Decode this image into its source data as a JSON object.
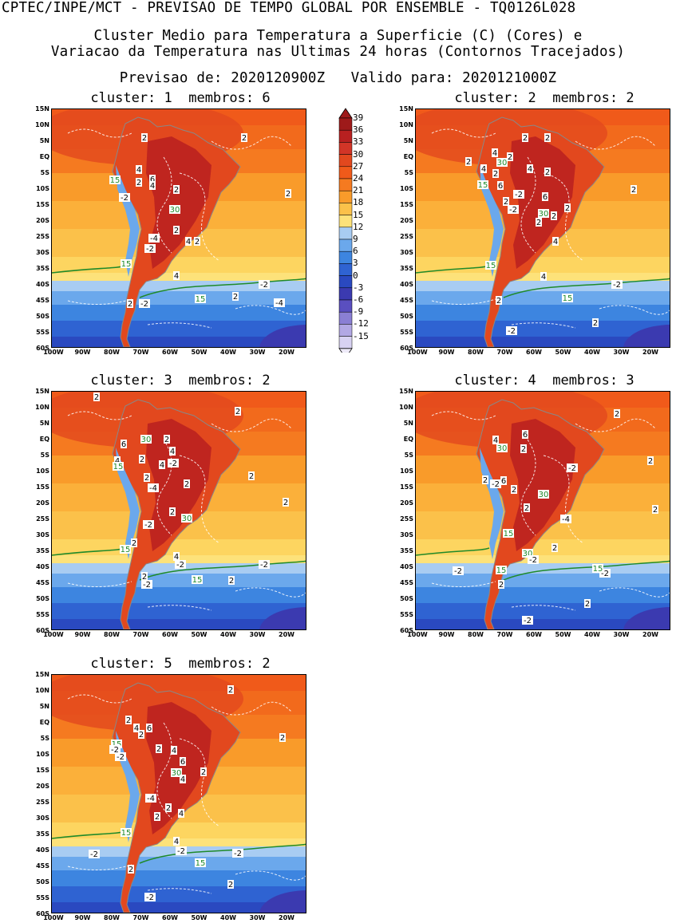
{
  "header": {
    "line1": "CPTEC/INPE/MCT - PREVISAO DE TEMPO GLOBAL POR ENSEMBLE - TQ0126L028",
    "line2": "Cluster Medio para Temperatura a Superficie (C) (Cores) e",
    "line3": "Variacao da Temperatura nas Ultimas 24 horas (Contornos Tracejados)",
    "line4": "Previsao de: 2020120900Z   Valido para: 2020121000Z"
  },
  "panels": [
    {
      "title": "cluster: 1  membros: 6"
    },
    {
      "title": "cluster: 2  membros: 2"
    },
    {
      "title": "cluster: 3  membros: 2"
    },
    {
      "title": "cluster: 4  membros: 3"
    },
    {
      "title": "cluster: 5  membros: 2"
    }
  ],
  "lat_labels": [
    "15N",
    "10N",
    "5N",
    "EQ",
    "5S",
    "10S",
    "15S",
    "20S",
    "25S",
    "30S",
    "35S",
    "40S",
    "45S",
    "50S",
    "55S",
    "60S"
  ],
  "lon_labels": [
    "100W",
    "90W",
    "80W",
    "70W",
    "60W",
    "50W",
    "40W",
    "30W",
    "20W"
  ],
  "colorbar": {
    "labels": [
      "39",
      "36",
      "33",
      "30",
      "27",
      "24",
      "21",
      "18",
      "15",
      "12",
      "9",
      "6",
      "3",
      "0",
      "-3",
      "-6",
      "-9",
      "-12",
      "-15"
    ],
    "colors": [
      "#9e1a1a",
      "#b82020",
      "#d23527",
      "#e2481e",
      "#f05a1a",
      "#f57a20",
      "#f99b2a",
      "#fbc14a",
      "#fde27a",
      "#a8ccf2",
      "#6ba8ec",
      "#3d85e0",
      "#2f63d2",
      "#2a49c0",
      "#3b3ab0",
      "#5a4fc0",
      "#8a7fd4",
      "#b2a8e4",
      "#d8d2f2"
    ]
  },
  "contour_labels": {
    "p1": [
      [
        "2",
        180,
        172
      ],
      [
        "2",
        305,
        172
      ],
      [
        "15",
        143,
        225
      ],
      [
        "4",
        173,
        212
      ],
      [
        "6",
        190,
        224
      ],
      [
        "2",
        173,
        228
      ],
      [
        "4",
        190,
        232
      ],
      [
        "2",
        220,
        237
      ],
      [
        "-2",
        155,
        247
      ],
      [
        "30",
        218,
        262
      ],
      [
        "2",
        360,
        242
      ],
      [
        "2",
        220,
        288
      ],
      [
        "-4",
        192,
        298
      ],
      [
        "4",
        235,
        302
      ],
      [
        "2",
        246,
        302
      ],
      [
        "-2",
        187,
        311
      ],
      [
        "4",
        220,
        345
      ],
      [
        "15",
        157,
        330
      ],
      [
        "-2",
        330,
        356
      ],
      [
        "2",
        294,
        371
      ],
      [
        "-4",
        349,
        379
      ],
      [
        "2",
        162,
        380
      ],
      [
        "-2",
        180,
        380
      ],
      [
        "15",
        250,
        374
      ]
    ],
    "p2": [
      [
        "2",
        657,
        172
      ],
      [
        "2",
        685,
        172
      ],
      [
        "4",
        619,
        191
      ],
      [
        "2",
        638,
        196
      ],
      [
        "2",
        586,
        202
      ],
      [
        "30",
        628,
        203
      ],
      [
        "4",
        605,
        211
      ],
      [
        "2",
        620,
        217
      ],
      [
        "4",
        663,
        211
      ],
      [
        "2",
        685,
        215
      ],
      [
        "15",
        604,
        231
      ],
      [
        "6",
        626,
        232
      ],
      [
        "-2",
        649,
        243
      ],
      [
        "6",
        682,
        246
      ],
      [
        "2",
        793,
        237
      ],
      [
        "2",
        633,
        252
      ],
      [
        "-2",
        642,
        262
      ],
      [
        "30",
        680,
        267
      ],
      [
        "2",
        710,
        260
      ],
      [
        "2",
        693,
        270
      ],
      [
        "2",
        674,
        278
      ],
      [
        "4",
        695,
        302
      ],
      [
        "15",
        614,
        332
      ],
      [
        "4",
        680,
        346
      ],
      [
        "-2",
        772,
        356
      ],
      [
        "2",
        624,
        376
      ],
      [
        "15",
        710,
        373
      ],
      [
        "2",
        745,
        404
      ],
      [
        "-2",
        640,
        414
      ]
    ],
    "p3": [
      [
        "2",
        120,
        497
      ],
      [
        "2",
        297,
        515
      ],
      [
        "6",
        154,
        556
      ],
      [
        "30",
        182,
        550
      ],
      [
        "2",
        208,
        550
      ],
      [
        "4",
        215,
        565
      ],
      [
        "4",
        146,
        577
      ],
      [
        "2",
        177,
        575
      ],
      [
        "15",
        147,
        584
      ],
      [
        "4",
        202,
        582
      ],
      [
        "-2",
        216,
        580
      ],
      [
        "2",
        183,
        598
      ],
      [
        "-4",
        191,
        611
      ],
      [
        "2",
        233,
        606
      ],
      [
        "2",
        314,
        596
      ],
      [
        "2",
        357,
        629
      ],
      [
        "2",
        215,
        641
      ],
      [
        "30",
        233,
        649
      ],
      [
        "-2",
        185,
        657
      ],
      [
        "2",
        167,
        680
      ],
      [
        "15",
        156,
        688
      ],
      [
        "4",
        220,
        697
      ],
      [
        "-2",
        225,
        707
      ],
      [
        "-2",
        330,
        707
      ],
      [
        "2",
        180,
        722
      ],
      [
        "-2",
        183,
        732
      ],
      [
        "15",
        246,
        726
      ],
      [
        "2",
        289,
        727
      ]
    ],
    "p4": [
      [
        "2",
        772,
        518
      ],
      [
        "4",
        620,
        551
      ],
      [
        "30",
        628,
        561
      ],
      [
        "6",
        657,
        544
      ],
      [
        "2",
        655,
        562
      ],
      [
        "2",
        814,
        577
      ],
      [
        "-2",
        716,
        586
      ],
      [
        "2",
        607,
        601
      ],
      [
        "-2",
        620,
        606
      ],
      [
        "6",
        630,
        602
      ],
      [
        "2",
        643,
        613
      ],
      [
        "30",
        680,
        619
      ],
      [
        "2",
        659,
        636
      ],
      [
        "2",
        820,
        638
      ],
      [
        "-4",
        708,
        650
      ],
      [
        "15",
        636,
        668
      ],
      [
        "2",
        694,
        686
      ],
      [
        "30",
        660,
        693
      ],
      [
        "-2",
        667,
        701
      ],
      [
        "15",
        627,
        714
      ],
      [
        "-2",
        573,
        715
      ],
      [
        "-2",
        757,
        718
      ],
      [
        "15",
        748,
        712
      ],
      [
        "2",
        627,
        732
      ],
      [
        "2",
        735,
        756
      ],
      [
        "-2",
        660,
        777
      ]
    ],
    "p5": [
      [
        "2",
        288,
        864
      ],
      [
        "2",
        160,
        902
      ],
      [
        "4",
        170,
        912
      ],
      [
        "6",
        186,
        912
      ],
      [
        "2",
        176,
        920
      ],
      [
        "2",
        353,
        924
      ],
      [
        "15",
        145,
        932
      ],
      [
        "-2",
        143,
        939
      ],
      [
        "2",
        198,
        938
      ],
      [
        "4",
        217,
        940
      ],
      [
        "-2",
        150,
        948
      ],
      [
        "6",
        228,
        954
      ],
      [
        "30",
        220,
        968
      ],
      [
        "2",
        254,
        967
      ],
      [
        "4",
        228,
        976
      ],
      [
        "-4",
        188,
        1000
      ],
      [
        "2",
        210,
        1012
      ],
      [
        "4",
        226,
        1019
      ],
      [
        "2",
        196,
        1023
      ],
      [
        "15",
        157,
        1043
      ],
      [
        "4",
        220,
        1054
      ],
      [
        "-2",
        226,
        1066
      ],
      [
        "-2",
        117,
        1070
      ],
      [
        "-2",
        297,
        1069
      ],
      [
        "15",
        250,
        1081
      ],
      [
        "2",
        163,
        1089
      ],
      [
        "2",
        288,
        1108
      ],
      [
        "-2",
        187,
        1124
      ]
    ]
  }
}
